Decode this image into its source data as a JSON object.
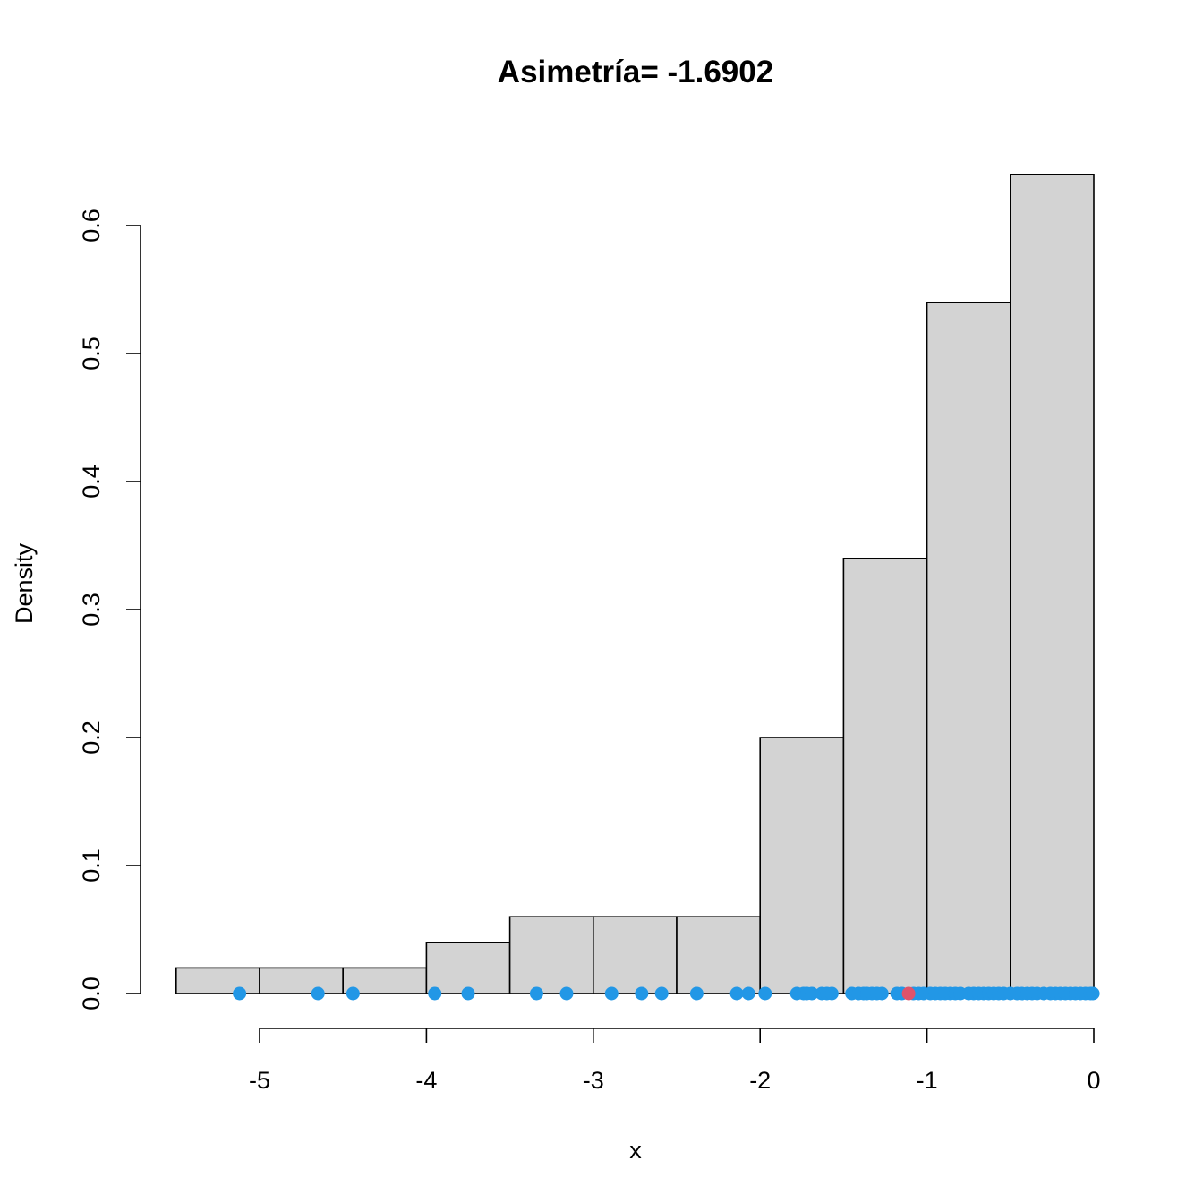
{
  "chart_data": {
    "type": "bar",
    "title": "Asimetría= -1.6902",
    "xlabel": "x",
    "ylabel": "Density",
    "xlim": [
      -5.5,
      0
    ],
    "ylim": [
      0,
      0.6
    ],
    "x_ticks": [
      -5,
      -4,
      -3,
      -2,
      -1,
      0
    ],
    "x_tick_labels": [
      "-5",
      "-4",
      "-3",
      "-2",
      "-1",
      "0"
    ],
    "y_ticks": [
      0,
      0.1,
      0.2,
      0.3,
      0.4,
      0.5,
      0.6
    ],
    "y_tick_labels": [
      "0.0",
      "0.1",
      "0.2",
      "0.3",
      "0.4",
      "0.5",
      "0.6"
    ],
    "bins": [
      {
        "x0": -5.5,
        "x1": -5.0,
        "density": 0.02
      },
      {
        "x0": -5.0,
        "x1": -4.5,
        "density": 0.02
      },
      {
        "x0": -4.5,
        "x1": -4.0,
        "density": 0.02
      },
      {
        "x0": -4.0,
        "x1": -3.5,
        "density": 0.04
      },
      {
        "x0": -3.5,
        "x1": -3.0,
        "density": 0.06
      },
      {
        "x0": -3.0,
        "x1": -2.5,
        "density": 0.06
      },
      {
        "x0": -2.5,
        "x1": -2.0,
        "density": 0.06
      },
      {
        "x0": -2.0,
        "x1": -1.5,
        "density": 0.2
      },
      {
        "x0": -1.5,
        "x1": -1.0,
        "density": 0.34
      },
      {
        "x0": -1.0,
        "x1": -0.5,
        "density": 0.54
      },
      {
        "x0": -0.5,
        "x1": 0.0,
        "density": 0.64
      }
    ],
    "rug_points": [
      -5.12,
      -4.65,
      -4.44,
      -3.95,
      -3.75,
      -3.34,
      -3.16,
      -2.89,
      -2.71,
      -2.59,
      -2.38,
      -2.14,
      -2.07,
      -1.97,
      -1.78,
      -1.74,
      -1.72,
      -1.69,
      -1.63,
      -1.6,
      -1.57,
      -1.45,
      -1.41,
      -1.38,
      -1.36,
      -1.33,
      -1.3,
      -1.27,
      -1.18,
      -1.15,
      -1.08,
      -1.05,
      -1.02,
      -0.98,
      -0.95,
      -0.92,
      -0.89,
      -0.86,
      -0.83,
      -0.8,
      -0.75,
      -0.72,
      -0.69,
      -0.66,
      -0.63,
      -0.6,
      -0.57,
      -0.54,
      -0.5,
      -0.46,
      -0.43,
      -0.4,
      -0.37,
      -0.34,
      -0.3,
      -0.26,
      -0.23,
      -0.2,
      -0.17,
      -0.14,
      -0.11,
      -0.08,
      -0.05,
      -0.02,
      -0.005
    ],
    "highlight_point": -1.11,
    "colors": {
      "bar_fill": "#d3d3d3",
      "rug": "#2297e6",
      "highlight": "#df536b"
    }
  }
}
